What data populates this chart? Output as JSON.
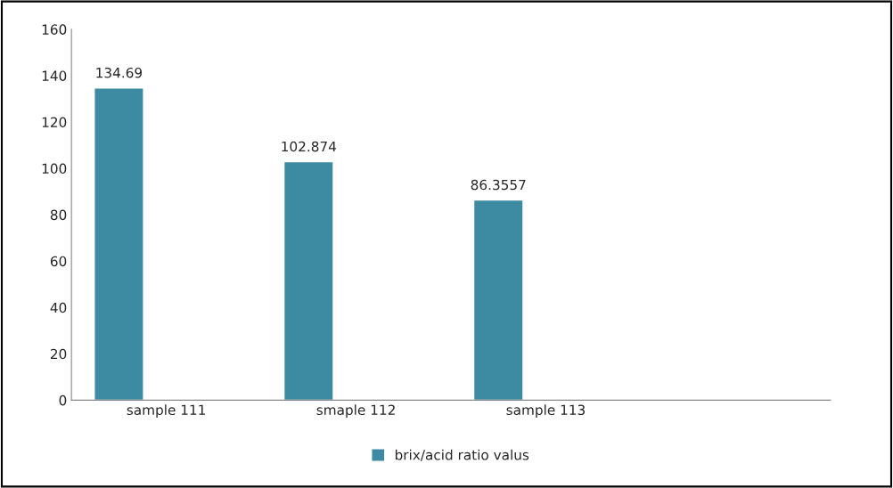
{
  "chart_data": {
    "type": "bar",
    "categories": [
      "sample 111",
      "smaple 112",
      "sample 113",
      null
    ],
    "series": [
      {
        "name": "brix/acid ratio valus",
        "color": "#3d8ba3",
        "values": [
          134.69,
          102.874,
          86.3557,
          null
        ]
      }
    ],
    "ylim": [
      0,
      160
    ],
    "yticks": [
      0,
      20,
      40,
      60,
      80,
      100,
      120,
      140,
      160
    ],
    "data_labels": true,
    "legend": "bottom",
    "grid": false
  }
}
